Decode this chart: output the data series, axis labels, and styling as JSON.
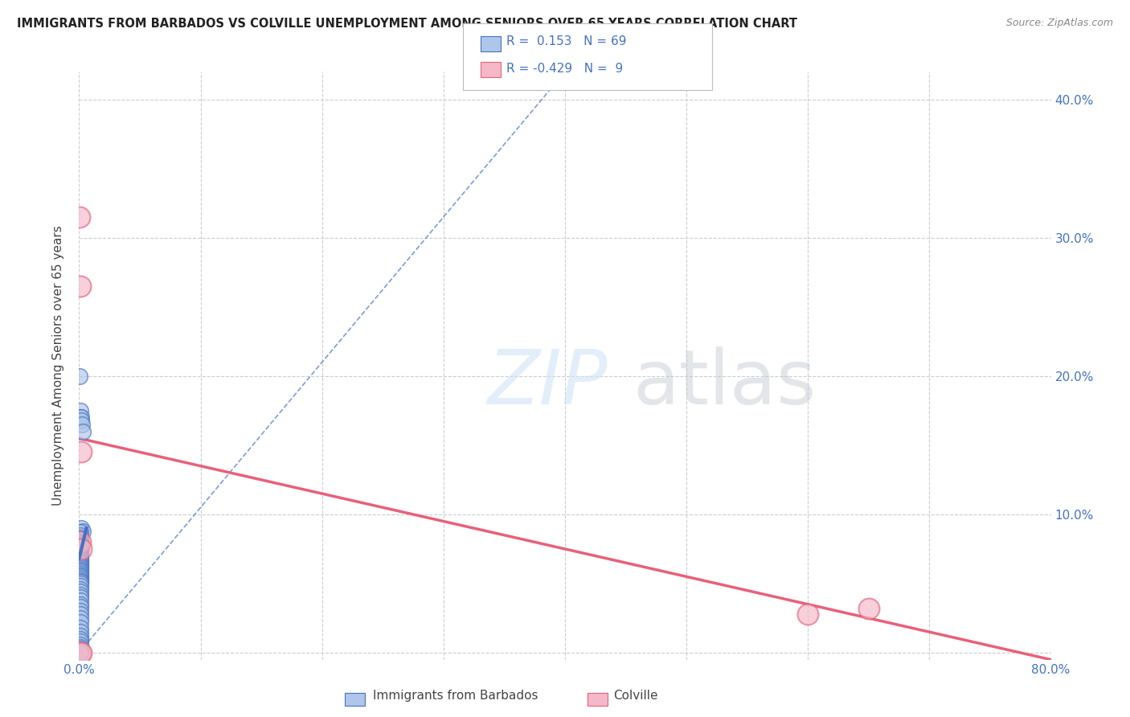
{
  "title": "IMMIGRANTS FROM BARBADOS VS COLVILLE UNEMPLOYMENT AMONG SENIORS OVER 65 YEARS CORRELATION CHART",
  "source": "Source: ZipAtlas.com",
  "ylabel": "Unemployment Among Seniors over 65 years",
  "xlim": [
    0.0,
    0.8
  ],
  "ylim": [
    -0.005,
    0.42
  ],
  "xtick_positions": [
    0.0,
    0.1,
    0.2,
    0.3,
    0.4,
    0.5,
    0.6,
    0.7,
    0.8
  ],
  "xticklabels": [
    "0.0%",
    "",
    "",
    "",
    "",
    "",
    "",
    "",
    "80.0%"
  ],
  "ytick_positions": [
    0.0,
    0.1,
    0.2,
    0.3,
    0.4
  ],
  "ytick_right_labels": [
    "",
    "10.0%",
    "20.0%",
    "30.0%",
    "40.0%"
  ],
  "background_color": "#ffffff",
  "blue_color": "#aec6e8",
  "blue_edge_color": "#4472c4",
  "pink_color": "#f4b8c8",
  "pink_edge_color": "#e8607a",
  "legend_R_blue": "0.153",
  "legend_N_blue": "69",
  "legend_R_pink": "-0.429",
  "legend_N_pink": "9",
  "blue_scatter_x": [
    0.0005,
    0.001,
    0.001,
    0.0015,
    0.002,
    0.0025,
    0.003,
    0.002,
    0.003,
    0.001,
    0.001,
    0.001,
    0.001,
    0.001,
    0.0015,
    0.002,
    0.002,
    0.002,
    0.001,
    0.001,
    0.001,
    0.001,
    0.001,
    0.001,
    0.001,
    0.001,
    0.001,
    0.001,
    0.001,
    0.001,
    0.001,
    0.001,
    0.001,
    0.001,
    0.001,
    0.001,
    0.001,
    0.001,
    0.001,
    0.001,
    0.001,
    0.001,
    0.001,
    0.001,
    0.001,
    0.001,
    0.001,
    0.001,
    0.001,
    0.001,
    0.001,
    0.001,
    0.001,
    0.001,
    0.001,
    0.001,
    0.001,
    0.001,
    0.001,
    0.001,
    0.001,
    0.001,
    0.001,
    0.001,
    0.001,
    0.001,
    0.001,
    0.001,
    0.001
  ],
  "blue_scatter_y": [
    0.2,
    0.175,
    0.17,
    0.17,
    0.168,
    0.165,
    0.16,
    0.09,
    0.088,
    0.087,
    0.085,
    0.083,
    0.082,
    0.08,
    0.079,
    0.078,
    0.077,
    0.076,
    0.075,
    0.074,
    0.073,
    0.072,
    0.071,
    0.07,
    0.069,
    0.068,
    0.067,
    0.066,
    0.065,
    0.064,
    0.063,
    0.062,
    0.061,
    0.06,
    0.059,
    0.058,
    0.057,
    0.056,
    0.055,
    0.054,
    0.053,
    0.052,
    0.051,
    0.05,
    0.048,
    0.046,
    0.044,
    0.042,
    0.04,
    0.038,
    0.035,
    0.033,
    0.03,
    0.028,
    0.025,
    0.022,
    0.018,
    0.015,
    0.012,
    0.01,
    0.008,
    0.006,
    0.004,
    0.003,
    0.002,
    0.001,
    0.001,
    0.0,
    0.0
  ],
  "pink_scatter_x": [
    0.0005,
    0.001,
    0.002,
    0.001,
    0.002,
    0.6,
    0.65,
    0.001,
    0.002
  ],
  "pink_scatter_y": [
    0.315,
    0.265,
    0.145,
    0.08,
    0.075,
    0.028,
    0.032,
    0.0,
    0.0
  ],
  "blue_dash_line_x": [
    0.0,
    0.4
  ],
  "blue_dash_line_y": [
    0.0,
    0.42
  ],
  "blue_solid_line_x": [
    0.0,
    0.006
  ],
  "blue_solid_line_y": [
    0.068,
    0.09
  ],
  "pink_trend_x": [
    0.0,
    0.8
  ],
  "pink_trend_y": [
    0.155,
    -0.005
  ]
}
